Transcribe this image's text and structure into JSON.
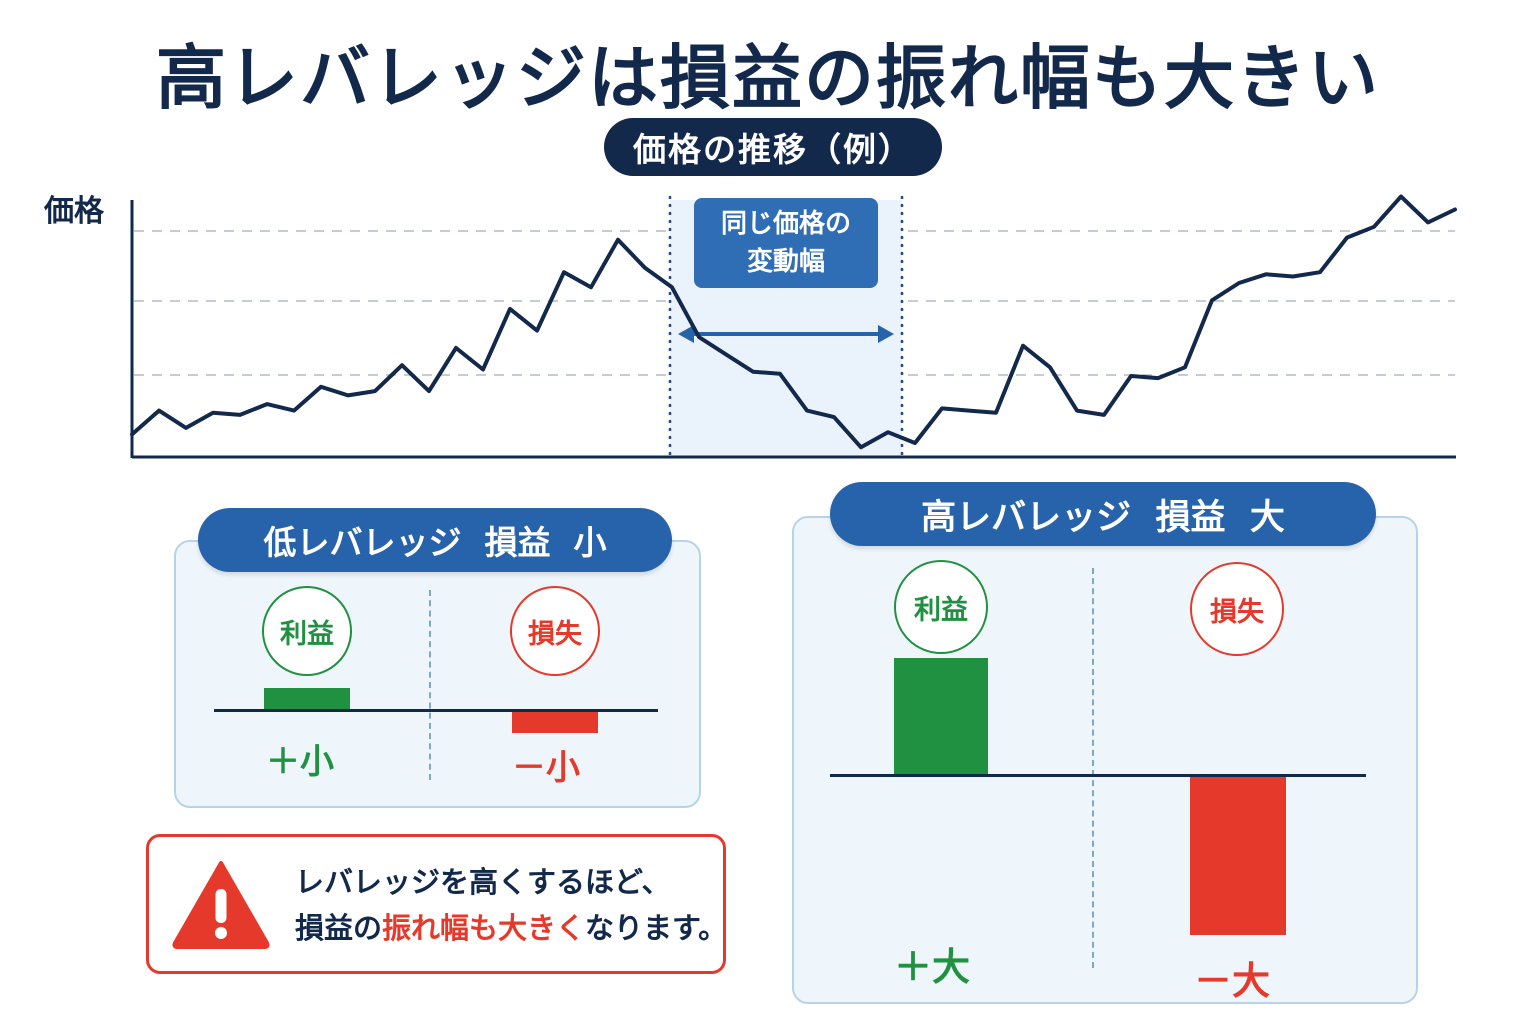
{
  "title": "高レバレッジは損益の振れ幅も大きい",
  "chart": {
    "pill_label": "価格の推移（例）",
    "y_label": "価格",
    "range_label_line1": "同じ価格の",
    "range_label_line2": "変動幅"
  },
  "chart_data": {
    "type": "line",
    "title": "価格の推移（例）",
    "ylabel": "価格",
    "grid": "dashed horizontal",
    "series": [
      {
        "name": "",
        "values": [
          1.0,
          2.1,
          1.3,
          2.0,
          1.9,
          2.4,
          2.1,
          3.2,
          2.8,
          3.0,
          4.2,
          3.0,
          5.0,
          4.0,
          6.8,
          5.8,
          8.5,
          7.8,
          10.0,
          8.7,
          7.8,
          5.5,
          4.7,
          3.9,
          3.8,
          2.1,
          1.8,
          0.4,
          1.1,
          0.6,
          2.2,
          2.1,
          2.0,
          5.1,
          4.1,
          2.1,
          1.9,
          3.7,
          3.6,
          4.1,
          7.2,
          8.0,
          8.4,
          8.3,
          8.5,
          10.1,
          10.6,
          12.0,
          10.8,
          11.4
        ]
      }
    ],
    "highlight_range": "同じ価格の変動幅"
  },
  "low_panel": {
    "title": "低レバレッジ  損益  小",
    "profit_label": "利益",
    "loss_label": "損失",
    "profit_value": "＋小",
    "loss_value": "－小",
    "profit_level": 0.1,
    "loss_level": 0.1
  },
  "high_panel": {
    "title": "高レバレッジ  損益  大",
    "profit_label": "利益",
    "loss_label": "損失",
    "profit_value": "＋大",
    "loss_value": "－大",
    "profit_level": 0.55,
    "loss_level": 0.75
  },
  "warning": {
    "icon": "warning-triangle-icon",
    "line1": "レバレッジを高くするほど、",
    "line2_prefix": "損益の",
    "line2_emphasis": "振れ幅も大きく",
    "line2_suffix": "なります。"
  },
  "colors": {
    "navy": "#13294b",
    "blue": "#2763ab",
    "profit": "#1f9140",
    "loss": "#e5392b"
  }
}
